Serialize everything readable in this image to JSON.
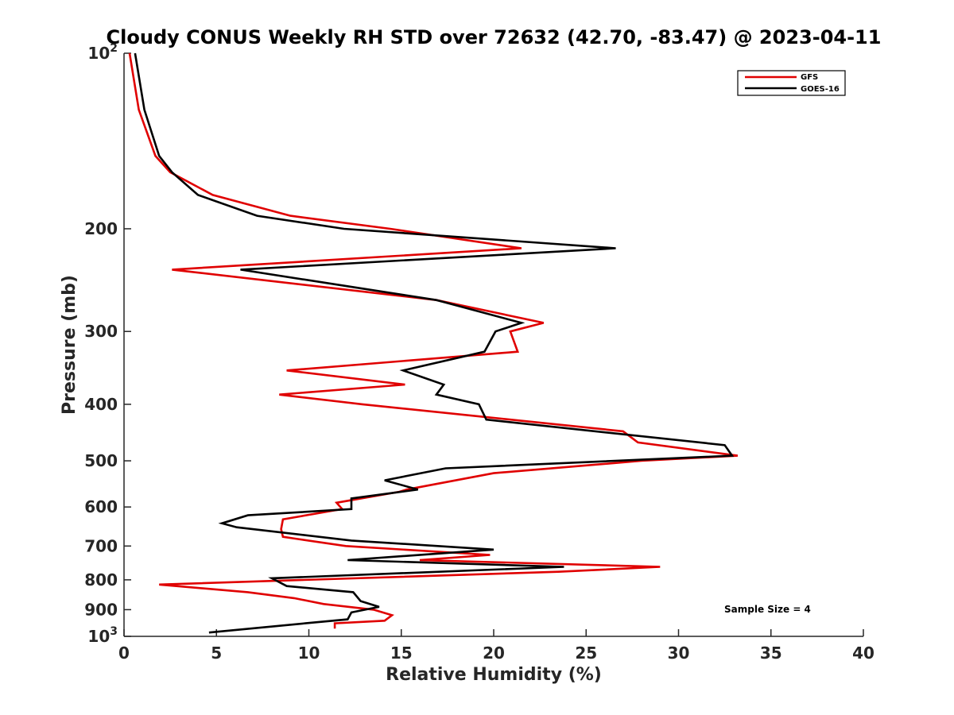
{
  "chart_data": {
    "type": "line",
    "title": "Cloudy CONUS Weekly RH STD over 72632 (42.70, -83.47) @ 2023-04-11",
    "xlabel": "Relative Humidity (%)",
    "ylabel": "Pressure (mb)",
    "xlim": [
      0,
      40
    ],
    "ylim": [
      100,
      1000
    ],
    "y_scale": "log",
    "y_reversed": true,
    "x_ticks": [
      "0",
      "5",
      "10",
      "15",
      "20",
      "25",
      "30",
      "35",
      "40"
    ],
    "y_ticks": [
      {
        "value": 100,
        "base": "10",
        "exp": "2"
      },
      {
        "value": 200,
        "label": "200"
      },
      {
        "value": 300,
        "label": "300"
      },
      {
        "value": 400,
        "label": "400"
      },
      {
        "value": 500,
        "label": "500"
      },
      {
        "value": 600,
        "label": "600"
      },
      {
        "value": 700,
        "label": "700"
      },
      {
        "value": 800,
        "label": "800"
      },
      {
        "value": 900,
        "label": "900"
      },
      {
        "value": 1000,
        "base": "10",
        "exp": "3"
      }
    ],
    "grid": false,
    "legend_position": "top-right",
    "annotation": "Sample Size = 4",
    "series": [
      {
        "name": "GFS",
        "color": "#e00000",
        "points": [
          [
            0.3,
            100
          ],
          [
            0.8,
            125
          ],
          [
            1.7,
            150
          ],
          [
            2.5,
            160
          ],
          [
            4.8,
            175
          ],
          [
            9.0,
            190
          ],
          [
            14.4,
            200
          ],
          [
            21.5,
            216
          ],
          [
            2.6,
            235
          ],
          [
            16.9,
            265
          ],
          [
            22.7,
            290
          ],
          [
            20.9,
            300
          ],
          [
            21.3,
            325
          ],
          [
            8.8,
            350
          ],
          [
            15.2,
            370
          ],
          [
            8.4,
            385
          ],
          [
            12.9,
            400
          ],
          [
            27.0,
            445
          ],
          [
            27.8,
            465
          ],
          [
            33.2,
            490
          ],
          [
            28.0,
            500
          ],
          [
            20.0,
            525
          ],
          [
            15.3,
            560
          ],
          [
            14.9,
            565
          ],
          [
            11.5,
            590
          ],
          [
            11.8,
            605
          ],
          [
            8.6,
            630
          ],
          [
            8.5,
            655
          ],
          [
            8.6,
            675
          ],
          [
            9.3,
            680
          ],
          [
            12.0,
            700
          ],
          [
            19.8,
            725
          ],
          [
            16.0,
            740
          ],
          [
            29.0,
            760
          ],
          [
            23.5,
            775
          ],
          [
            1.9,
            815
          ],
          [
            6.7,
            840
          ],
          [
            9.2,
            860
          ],
          [
            10.8,
            880
          ],
          [
            13.5,
            900
          ],
          [
            14.5,
            920
          ],
          [
            14.1,
            940
          ],
          [
            11.4,
            950
          ],
          [
            11.4,
            970
          ]
        ]
      },
      {
        "name": "GOES-16",
        "color": "#000000",
        "points": [
          [
            0.6,
            100
          ],
          [
            1.1,
            125
          ],
          [
            1.9,
            150
          ],
          [
            2.6,
            160
          ],
          [
            4.0,
            175
          ],
          [
            7.2,
            190
          ],
          [
            11.9,
            200
          ],
          [
            26.6,
            216
          ],
          [
            6.3,
            235
          ],
          [
            16.9,
            265
          ],
          [
            21.5,
            290
          ],
          [
            20.1,
            300
          ],
          [
            19.5,
            325
          ],
          [
            15.1,
            350
          ],
          [
            17.3,
            370
          ],
          [
            16.9,
            385
          ],
          [
            19.2,
            400
          ],
          [
            19.6,
            425
          ],
          [
            32.5,
            470
          ],
          [
            32.9,
            490
          ],
          [
            17.4,
            515
          ],
          [
            14.1,
            540
          ],
          [
            15.9,
            560
          ],
          [
            12.3,
            580
          ],
          [
            12.3,
            605
          ],
          [
            6.7,
            620
          ],
          [
            5.3,
            640
          ],
          [
            6.1,
            650
          ],
          [
            12.3,
            685
          ],
          [
            20.0,
            710
          ],
          [
            12.1,
            740
          ],
          [
            23.8,
            760
          ],
          [
            8.0,
            795
          ],
          [
            8.8,
            820
          ],
          [
            12.4,
            840
          ],
          [
            12.8,
            870
          ],
          [
            13.8,
            890
          ],
          [
            12.3,
            910
          ],
          [
            12.1,
            935
          ],
          [
            9.8,
            950
          ],
          [
            4.6,
            985
          ]
        ]
      }
    ]
  }
}
